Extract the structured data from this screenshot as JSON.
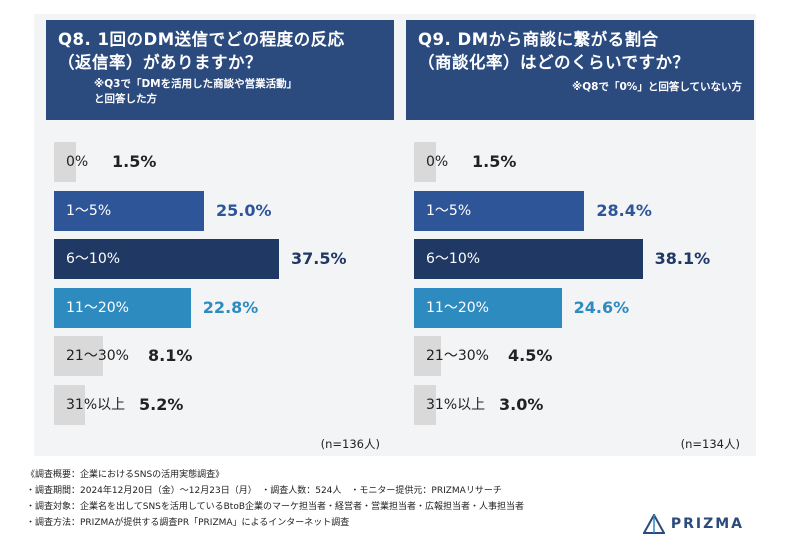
{
  "left": {
    "title_line1": "Q8. 1回のDM送信でどの程度の反応",
    "title_line2": "（返信率）がありますか？",
    "note_line1": "※Q3で「DMを活用した商談や営業活動」",
    "note_line2": "と回答した方",
    "n": "(n=136人)"
  },
  "right": {
    "title_line1": "Q9. DMから商談に繋がる割合",
    "title_line2": "（商談化率）はどのくらいですか？",
    "note_line1": "※Q8で「0%」と回答していない方",
    "n": "(n=134人)"
  },
  "chart_data": [
    {
      "type": "bar",
      "orientation": "horizontal",
      "categories": [
        "0%",
        "1〜5%",
        "6〜10%",
        "11〜20%",
        "21〜30%",
        "31%以上"
      ],
      "values": [
        1.5,
        25.0,
        37.5,
        22.8,
        8.1,
        5.2
      ],
      "value_labels": [
        "1.5%",
        "25.0%",
        "37.5%",
        "22.8%",
        "8.1%",
        "5.2%"
      ],
      "colors": [
        "#d9d9d9",
        "#2e5597",
        "#1f3864",
        "#2e8bc0",
        "#d9d9d9",
        "#d9d9d9"
      ]
    },
    {
      "type": "bar",
      "orientation": "horizontal",
      "categories": [
        "0%",
        "1〜5%",
        "6〜10%",
        "11〜20%",
        "21〜30%",
        "31%以上"
      ],
      "values": [
        1.5,
        28.4,
        38.1,
        24.6,
        4.5,
        3.0
      ],
      "value_labels": [
        "1.5%",
        "28.4%",
        "38.1%",
        "24.6%",
        "4.5%",
        "3.0%"
      ],
      "colors": [
        "#d9d9d9",
        "#2e5597",
        "#1f3864",
        "#2e8bc0",
        "#d9d9d9",
        "#d9d9d9"
      ]
    }
  ],
  "footer": {
    "line1": "《調査概要：企業におけるSNSの活用実態調査》",
    "line2": "・調査期間：2024年12月20日（金）〜12月23日（月）　・調査人数：524人　・モニター提供元：PRIZMAリサーチ",
    "line3": "・調査対象：企業名を出してSNSを活用しているBtoB企業のマーケ担当者・経営者・営業担当者・広報担当者・人事担当者",
    "line4": "・調査方法：PRIZMAが提供する調査PR「PRIZMA」によるインターネット調査"
  },
  "logo": {
    "text": "PRIZMA",
    "color": "#2b4a7e"
  }
}
